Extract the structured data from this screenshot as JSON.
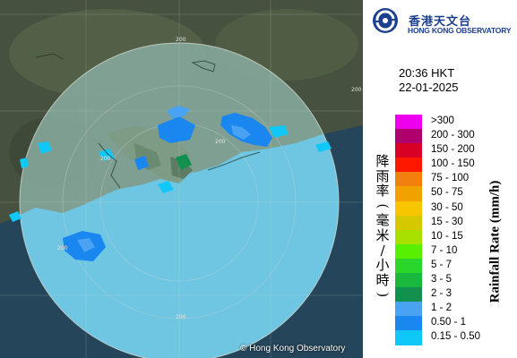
{
  "header": {
    "org_name_zh": "香港天文台",
    "org_name_en": "HONG KONG OBSERVATORY",
    "emblem_icon": "hko-logo-icon"
  },
  "timestamp": {
    "time": "20:36 HKT",
    "date": "22-01-2025"
  },
  "legend": {
    "title_en": "Rainfall Rate (mm/h)",
    "title_zh": "降雨率(毫米/小時)",
    "unit": "mm/h",
    "items": [
      {
        "label": ">300",
        "color": "#ee00ee"
      },
      {
        "label": "200 - 300",
        "color": "#b0006e"
      },
      {
        "label": "150 - 200",
        "color": "#d80024"
      },
      {
        "label": "100 - 150",
        "color": "#ff1800"
      },
      {
        "label": "75 - 100",
        "color": "#f2800e"
      },
      {
        "label": "50 - 75",
        "color": "#f2a200"
      },
      {
        "label": "30 - 50",
        "color": "#f7c600"
      },
      {
        "label": "15 - 30",
        "color": "#d6c800"
      },
      {
        "label": "10 - 15",
        "color": "#a8e000"
      },
      {
        "label": "7 - 10",
        "color": "#58f000"
      },
      {
        "label": "5 - 7",
        "color": "#2ad62a"
      },
      {
        "label": "3 - 5",
        "color": "#1ab83c"
      },
      {
        "label": "2 - 3",
        "color": "#12904e"
      },
      {
        "label": "1 - 2",
        "color": "#4aa2f2"
      },
      {
        "label": "0.50 - 1",
        "color": "#1a86f0"
      },
      {
        "label": "0.15 - 0.50",
        "color": "#10c8f8"
      }
    ]
  },
  "map": {
    "range_ring_label": "200",
    "copyright": "© Hong Kong Observatory"
  }
}
